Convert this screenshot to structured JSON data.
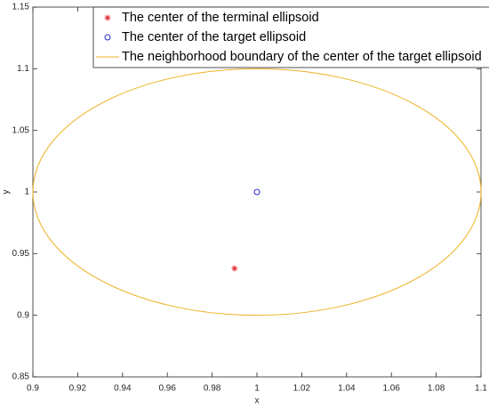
{
  "chart_data": {
    "type": "scatter",
    "xlabel": "x",
    "ylabel": "y",
    "xlim": [
      0.9,
      1.1
    ],
    "ylim": [
      0.85,
      1.15
    ],
    "xticks": [
      0.9,
      0.92,
      0.94,
      0.96,
      0.98,
      1,
      1.02,
      1.04,
      1.06,
      1.08,
      1.1
    ],
    "yticks": [
      0.85,
      0.9,
      0.95,
      1,
      1.05,
      1.1,
      1.15
    ],
    "legend": "north",
    "box": true,
    "series": [
      {
        "name": "The center of the terminal ellipsoid",
        "marker": "star",
        "color": "#e0202a",
        "x": [
          0.99
        ],
        "y": [
          0.938
        ]
      },
      {
        "name": "The center of the target ellipsoid",
        "marker": "circle",
        "color": "#2a2ac8",
        "x": [
          1
        ],
        "y": [
          1
        ]
      },
      {
        "name": "The neighborhood boundary of the center of the target ellipsoid",
        "marker": "ellipse",
        "color": "#edb120",
        "cx": 1,
        "cy": 1,
        "rx": 0.1,
        "ry": 0.1
      }
    ]
  }
}
